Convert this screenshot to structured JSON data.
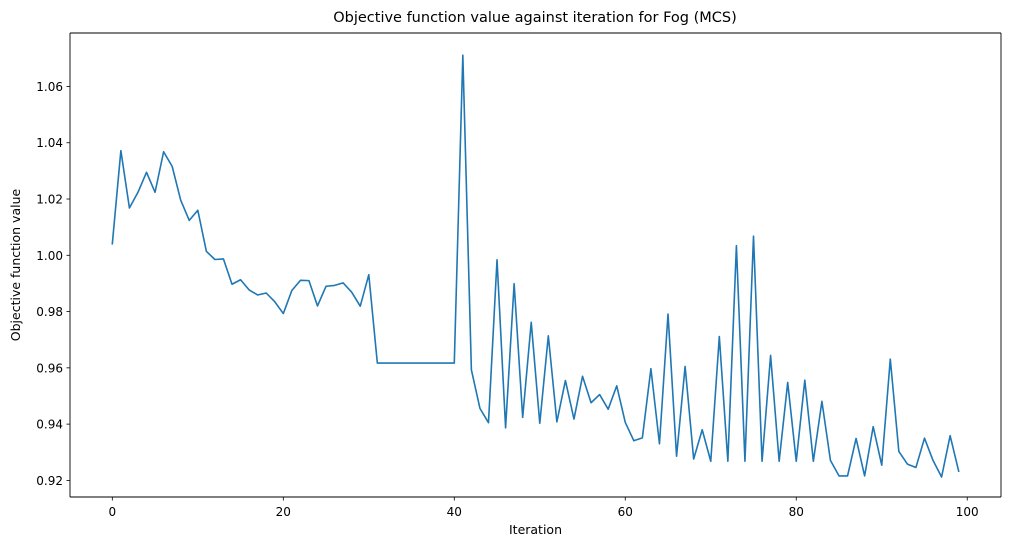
{
  "chart_data": {
    "type": "line",
    "title": "Objective function value against iteration for Fog (MCS)",
    "xlabel": "Iteration",
    "ylabel": "Objective function value",
    "xlim": [
      -4.95,
      103.95
    ],
    "ylim": [
      0.9141,
      1.079
    ],
    "xticks": [
      0,
      20,
      40,
      60,
      80,
      100
    ],
    "yticks": [
      0.92,
      0.94,
      0.96,
      0.98,
      1.0,
      1.02,
      1.04,
      1.06
    ],
    "ytick_labels": [
      "0.92",
      "0.94",
      "0.96",
      "0.98",
      "1.00",
      "1.02",
      "1.04",
      "1.06"
    ],
    "grid": false,
    "color": "#1f77b4",
    "series": [
      {
        "x": [
          0,
          1,
          2,
          3,
          4,
          5,
          6,
          7,
          8,
          9,
          10,
          11,
          12,
          13,
          14,
          15,
          16,
          17,
          18,
          19,
          20,
          21,
          22,
          23,
          24,
          25,
          26,
          27,
          28,
          29,
          30,
          31,
          32,
          33,
          34,
          35,
          36,
          37,
          38,
          39,
          40,
          41,
          42,
          43,
          44,
          45,
          46,
          47,
          48,
          49,
          50,
          51,
          52,
          53,
          54,
          55,
          56,
          57,
          58,
          59,
          60,
          61,
          62,
          63,
          64,
          65,
          66,
          67,
          68,
          69,
          70,
          71,
          72,
          73,
          74,
          75,
          76,
          77,
          78,
          79,
          80,
          81,
          82,
          83,
          84,
          85,
          86,
          87,
          88,
          89,
          90,
          91,
          92,
          93,
          94,
          95,
          96,
          97,
          98,
          99
        ],
        "values": [
          1.0041,
          1.0372,
          1.0168,
          1.0224,
          1.0295,
          1.0224,
          1.0368,
          1.0316,
          1.0196,
          1.0124,
          1.016,
          1.0014,
          0.9985,
          0.9987,
          0.9897,
          0.9913,
          0.9877,
          0.9859,
          0.9866,
          0.9835,
          0.9793,
          0.9875,
          0.9911,
          0.991,
          0.982,
          0.989,
          0.9893,
          0.9902,
          0.9869,
          0.9819,
          0.9931,
          0.9617,
          0.9617,
          0.9617,
          0.9617,
          0.9617,
          0.9617,
          0.9617,
          0.9617,
          0.9617,
          0.9617,
          1.0711,
          0.9593,
          0.9456,
          0.9405,
          0.9984,
          0.9387,
          0.9899,
          0.9424,
          0.9762,
          0.9403,
          0.9714,
          0.9408,
          0.9555,
          0.9418,
          0.957,
          0.9476,
          0.9505,
          0.9453,
          0.9536,
          0.9406,
          0.9341,
          0.9351,
          0.9597,
          0.933,
          0.9791,
          0.9286,
          0.9605,
          0.9276,
          0.938,
          0.9268,
          0.9711,
          0.9268,
          1.0034,
          0.9268,
          1.0068,
          0.9268,
          0.9644,
          0.9268,
          0.9548,
          0.9268,
          0.9556,
          0.9268,
          0.9481,
          0.9271,
          0.9216,
          0.9216,
          0.9349,
          0.9216,
          0.9391,
          0.9254,
          0.9631,
          0.9303,
          0.9258,
          0.9246,
          0.935,
          0.9271,
          0.9212,
          0.9359,
          0.9233
        ]
      }
    ]
  }
}
